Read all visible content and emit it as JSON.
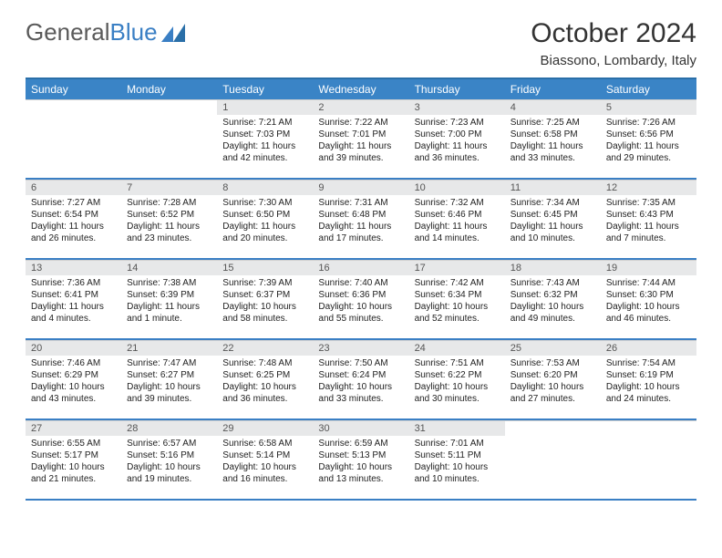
{
  "brand": {
    "part1": "General",
    "part2": "Blue"
  },
  "title": "October 2024",
  "subtitle": "Biassono, Lombardy, Italy",
  "colors": {
    "header_bg": "#3a84c6",
    "header_border": "#2a6fa8",
    "row_border": "#3a7fc4",
    "daynum_bg": "#e7e8e9",
    "text": "#222222",
    "title": "#333333"
  },
  "weekdays": [
    "Sunday",
    "Monday",
    "Tuesday",
    "Wednesday",
    "Thursday",
    "Friday",
    "Saturday"
  ],
  "weeks": [
    [
      {
        "empty": true
      },
      {
        "empty": true
      },
      {
        "n": "1",
        "sunrise": "7:21 AM",
        "sunset": "7:03 PM",
        "daylight": "11 hours and 42 minutes."
      },
      {
        "n": "2",
        "sunrise": "7:22 AM",
        "sunset": "7:01 PM",
        "daylight": "11 hours and 39 minutes."
      },
      {
        "n": "3",
        "sunrise": "7:23 AM",
        "sunset": "7:00 PM",
        "daylight": "11 hours and 36 minutes."
      },
      {
        "n": "4",
        "sunrise": "7:25 AM",
        "sunset": "6:58 PM",
        "daylight": "11 hours and 33 minutes."
      },
      {
        "n": "5",
        "sunrise": "7:26 AM",
        "sunset": "6:56 PM",
        "daylight": "11 hours and 29 minutes."
      }
    ],
    [
      {
        "n": "6",
        "sunrise": "7:27 AM",
        "sunset": "6:54 PM",
        "daylight": "11 hours and 26 minutes."
      },
      {
        "n": "7",
        "sunrise": "7:28 AM",
        "sunset": "6:52 PM",
        "daylight": "11 hours and 23 minutes."
      },
      {
        "n": "8",
        "sunrise": "7:30 AM",
        "sunset": "6:50 PM",
        "daylight": "11 hours and 20 minutes."
      },
      {
        "n": "9",
        "sunrise": "7:31 AM",
        "sunset": "6:48 PM",
        "daylight": "11 hours and 17 minutes."
      },
      {
        "n": "10",
        "sunrise": "7:32 AM",
        "sunset": "6:46 PM",
        "daylight": "11 hours and 14 minutes."
      },
      {
        "n": "11",
        "sunrise": "7:34 AM",
        "sunset": "6:45 PM",
        "daylight": "11 hours and 10 minutes."
      },
      {
        "n": "12",
        "sunrise": "7:35 AM",
        "sunset": "6:43 PM",
        "daylight": "11 hours and 7 minutes."
      }
    ],
    [
      {
        "n": "13",
        "sunrise": "7:36 AM",
        "sunset": "6:41 PM",
        "daylight": "11 hours and 4 minutes."
      },
      {
        "n": "14",
        "sunrise": "7:38 AM",
        "sunset": "6:39 PM",
        "daylight": "11 hours and 1 minute."
      },
      {
        "n": "15",
        "sunrise": "7:39 AM",
        "sunset": "6:37 PM",
        "daylight": "10 hours and 58 minutes."
      },
      {
        "n": "16",
        "sunrise": "7:40 AM",
        "sunset": "6:36 PM",
        "daylight": "10 hours and 55 minutes."
      },
      {
        "n": "17",
        "sunrise": "7:42 AM",
        "sunset": "6:34 PM",
        "daylight": "10 hours and 52 minutes."
      },
      {
        "n": "18",
        "sunrise": "7:43 AM",
        "sunset": "6:32 PM",
        "daylight": "10 hours and 49 minutes."
      },
      {
        "n": "19",
        "sunrise": "7:44 AM",
        "sunset": "6:30 PM",
        "daylight": "10 hours and 46 minutes."
      }
    ],
    [
      {
        "n": "20",
        "sunrise": "7:46 AM",
        "sunset": "6:29 PM",
        "daylight": "10 hours and 43 minutes."
      },
      {
        "n": "21",
        "sunrise": "7:47 AM",
        "sunset": "6:27 PM",
        "daylight": "10 hours and 39 minutes."
      },
      {
        "n": "22",
        "sunrise": "7:48 AM",
        "sunset": "6:25 PM",
        "daylight": "10 hours and 36 minutes."
      },
      {
        "n": "23",
        "sunrise": "7:50 AM",
        "sunset": "6:24 PM",
        "daylight": "10 hours and 33 minutes."
      },
      {
        "n": "24",
        "sunrise": "7:51 AM",
        "sunset": "6:22 PM",
        "daylight": "10 hours and 30 minutes."
      },
      {
        "n": "25",
        "sunrise": "7:53 AM",
        "sunset": "6:20 PM",
        "daylight": "10 hours and 27 minutes."
      },
      {
        "n": "26",
        "sunrise": "7:54 AM",
        "sunset": "6:19 PM",
        "daylight": "10 hours and 24 minutes."
      }
    ],
    [
      {
        "n": "27",
        "sunrise": "6:55 AM",
        "sunset": "5:17 PM",
        "daylight": "10 hours and 21 minutes."
      },
      {
        "n": "28",
        "sunrise": "6:57 AM",
        "sunset": "5:16 PM",
        "daylight": "10 hours and 19 minutes."
      },
      {
        "n": "29",
        "sunrise": "6:58 AM",
        "sunset": "5:14 PM",
        "daylight": "10 hours and 16 minutes."
      },
      {
        "n": "30",
        "sunrise": "6:59 AM",
        "sunset": "5:13 PM",
        "daylight": "10 hours and 13 minutes."
      },
      {
        "n": "31",
        "sunrise": "7:01 AM",
        "sunset": "5:11 PM",
        "daylight": "10 hours and 10 minutes."
      },
      {
        "empty": true
      },
      {
        "empty": true
      }
    ]
  ],
  "labels": {
    "sunrise": "Sunrise:",
    "sunset": "Sunset:",
    "daylight": "Daylight:"
  }
}
